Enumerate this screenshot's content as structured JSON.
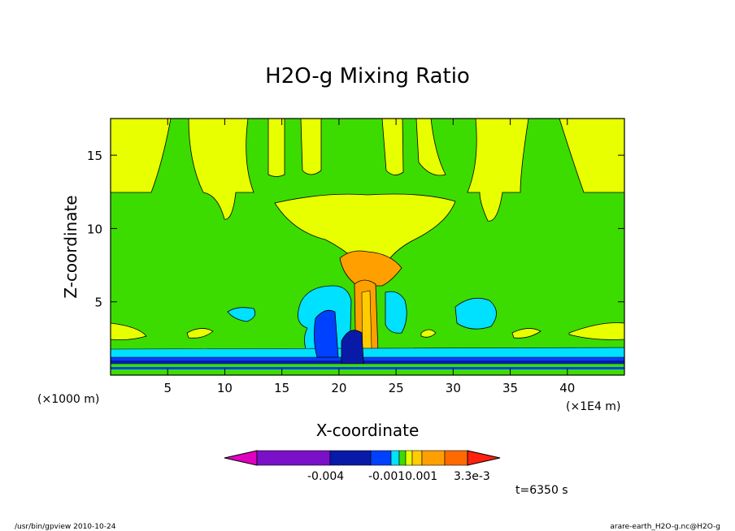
{
  "chart_data": {
    "type": "heatmap",
    "title": "H2O-g Mixing Ratio",
    "xlabel": "X-coordinate",
    "ylabel": "Z-coordinate",
    "x_unit": "(×1E4 m)",
    "y_unit": "(×1000 m)",
    "xlim": [
      0,
      45
    ],
    "ylim": [
      0,
      17.5
    ],
    "x_ticks": [
      5,
      10,
      15,
      20,
      25,
      30,
      35,
      40
    ],
    "x_tick_labels": [
      "5",
      "10",
      "15",
      "20",
      "25",
      "30",
      "35",
      "40"
    ],
    "y_ticks": [
      5,
      10,
      15
    ],
    "y_tick_labels": [
      "5",
      "10",
      "15"
    ],
    "time_label": "t=6350 s",
    "colorbar": {
      "colors": [
        "#e000c0",
        "#7a10c8",
        "#0a1aa8",
        "#0040ff",
        "#00e0ff",
        "#3cdc00",
        "#e8ff00",
        "#ffcc00",
        "#ffa000",
        "#ff6a00",
        "#ff2010"
      ],
      "labels": [
        "-0.004",
        "-0.0010.001",
        "3.3e-3"
      ],
      "label_keys": [
        "-0.004",
        "-0.001",
        "0.001",
        "3.3e-3"
      ]
    },
    "colors": {
      "background": "#3cdc00",
      "yellow": "#e8ff00",
      "gold": "#ffcc00",
      "orange": "#ffa000",
      "cyan": "#00e0ff",
      "blue": "#0040ff",
      "navy": "#0a1aa8",
      "purple": "#7a10c8"
    }
  },
  "footer": {
    "left": "/usr/bin/gpview   2010-10-24",
    "right": "arare-earth_H2O-g.nc@H2O-g"
  }
}
